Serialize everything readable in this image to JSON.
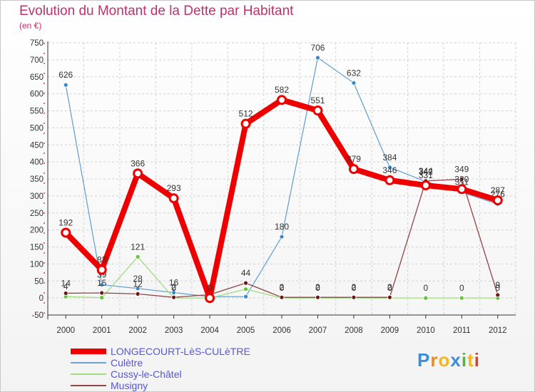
{
  "colors": {
    "title": "#c0306a",
    "legend_text": "#5555dd",
    "grid": "#d2d2d2",
    "axis": "#333333"
  },
  "chart_data": {
    "type": "line",
    "title": "Evolution du Montant de la Dette par Habitant",
    "unit": "(en €)",
    "xlabel": "",
    "ylabel": "",
    "ylim": [
      -50,
      750
    ],
    "y_ticks": [
      -50,
      0,
      50,
      100,
      150,
      200,
      250,
      300,
      350,
      400,
      450,
      500,
      550,
      600,
      650,
      700,
      750
    ],
    "categories": [
      "2000",
      "2001",
      "2002",
      "2003",
      "2004",
      "2005",
      "2006",
      "2007",
      "2008",
      "2009",
      "2010",
      "2011",
      "2012"
    ],
    "series": [
      {
        "name": "Culètre",
        "color": "#6aa3d2",
        "marker": "#3a87c9",
        "width": 1.3,
        "r": 3,
        "values": [
          626,
          39,
          28,
          16,
          4,
          4,
          180,
          706,
          632,
          384,
          342,
          311,
          276
        ],
        "labels": [
          "626",
          "39",
          "28",
          "16",
          "4",
          "",
          "180",
          "706",
          "632",
          "384",
          "342",
          "311",
          "276"
        ]
      },
      {
        "name": "Cussy-le-Châtel",
        "color": "#9fdc7f",
        "marker": "#66c13d",
        "width": 1.3,
        "r": 3,
        "values": [
          4,
          1,
          121,
          0,
          0,
          26,
          0,
          0,
          0,
          0,
          0,
          0,
          0
        ],
        "labels": [
          "4",
          "",
          "121",
          "0",
          "",
          "",
          "0",
          "0",
          "0",
          "0",
          "0",
          "0",
          "0"
        ]
      },
      {
        "name": "Musigny",
        "color": "#8e4545",
        "marker": "#6b1717",
        "width": 1.3,
        "r": 3,
        "values": [
          14,
          15,
          12,
          2,
          10,
          44,
          2,
          2,
          2,
          2,
          344,
          349,
          9
        ],
        "labels": [
          "14",
          "15",
          "12",
          "2",
          "",
          "44",
          "2",
          "2",
          "2",
          "2",
          "344",
          "349",
          "9"
        ]
      },
      {
        "name": "LONGECOURT-LèS-CULèTRE",
        "color": "#ee0000",
        "marker": "#ee0000",
        "width": 8,
        "r": 5.5,
        "values": [
          192,
          83,
          366,
          293,
          0,
          512,
          582,
          551,
          379,
          346,
          331,
          320,
          287
        ],
        "labels": [
          "192",
          "83",
          "366",
          "293",
          "0",
          "512",
          "582",
          "551",
          "379",
          "346",
          "331",
          "320",
          "287"
        ]
      }
    ],
    "legend": [
      {
        "name": "LONGECOURT-LèS-CULèTRE",
        "color": "#ee0000",
        "width": 8
      },
      {
        "name": "Culètre",
        "color": "#6aa3d2",
        "width": 2
      },
      {
        "name": "Cussy-le-Châtel",
        "color": "#9fdc7f",
        "width": 2
      },
      {
        "name": "Musigny",
        "color": "#8e4545",
        "width": 2
      }
    ]
  },
  "logo": {
    "letters": [
      "P",
      "r",
      "o",
      "x",
      "i",
      "t",
      "i"
    ],
    "colors": [
      "#3b8fd9",
      "#f08a1c",
      "#f0b81c",
      "#3b8fd9",
      "#5ab53c",
      "#f0b81c",
      "#e53b2c"
    ]
  }
}
